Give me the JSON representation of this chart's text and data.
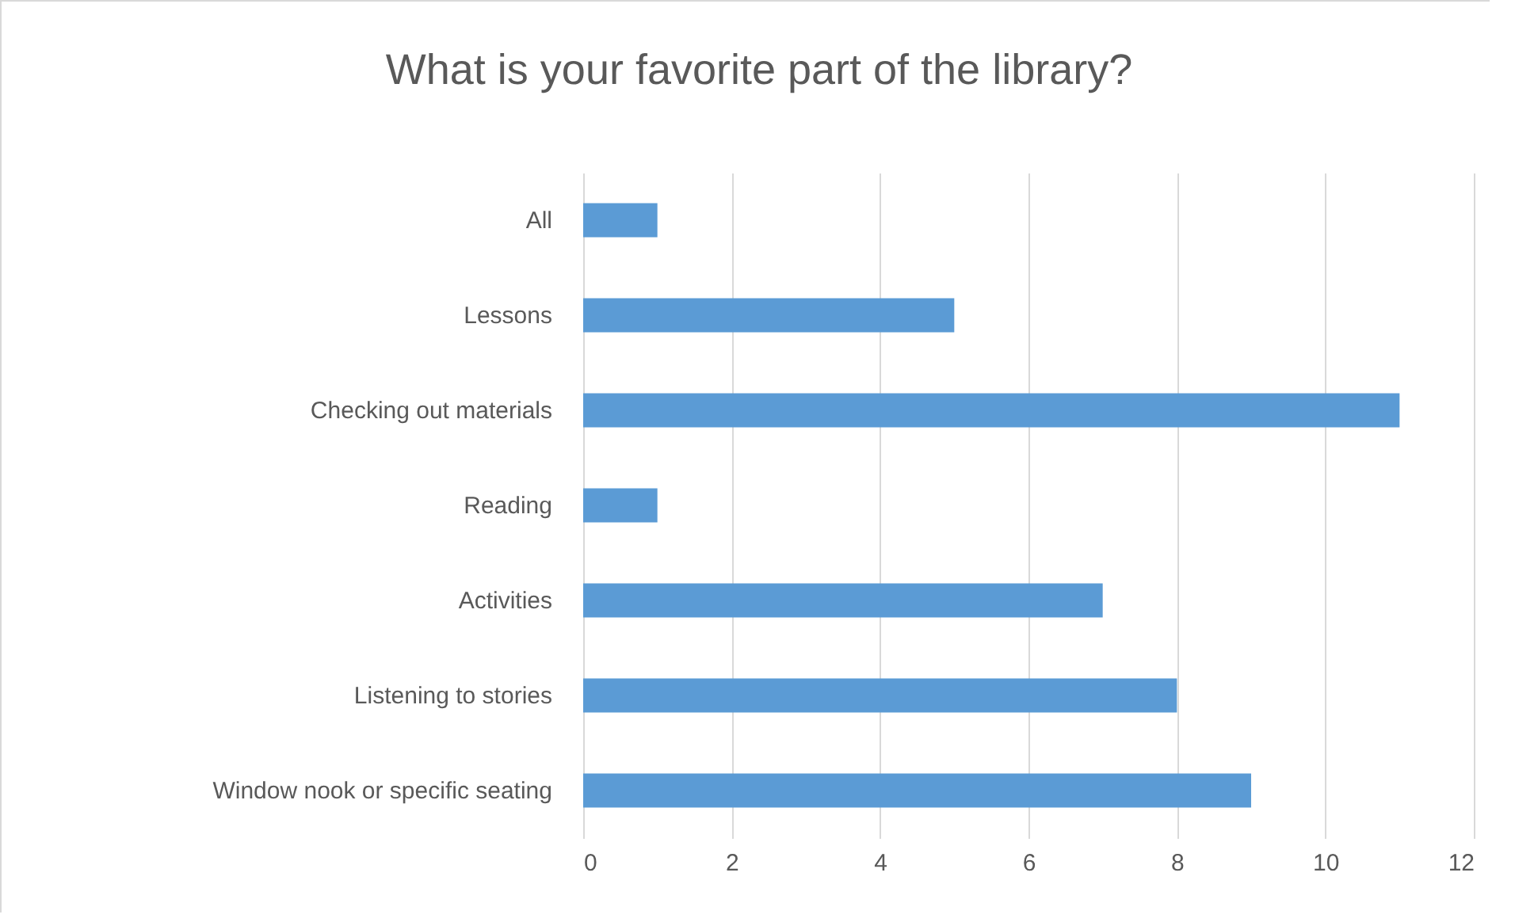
{
  "chart_data": {
    "type": "bar",
    "orientation": "horizontal",
    "title": "What is your favorite part of the library?",
    "categories": [
      "All",
      "Lessons",
      "Checking out materials",
      "Reading",
      "Activities",
      "Listening to stories",
      "Window nook or specific seating"
    ],
    "values": [
      1,
      5,
      11,
      1,
      7,
      8,
      9
    ],
    "color": "#5b9bd5",
    "xlim": [
      0,
      12
    ],
    "xticks": [
      0,
      2,
      4,
      6,
      8,
      10,
      12
    ],
    "grid": "x"
  }
}
